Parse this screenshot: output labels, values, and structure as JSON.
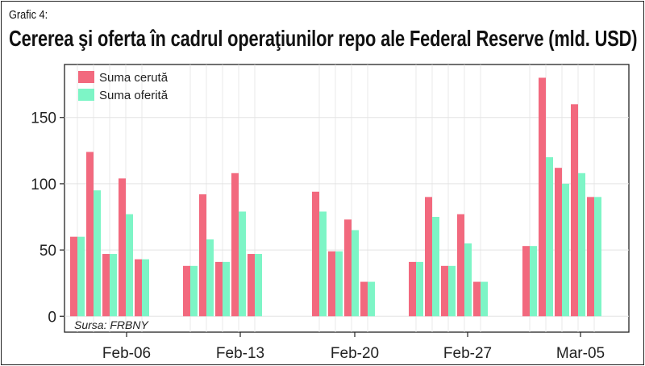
{
  "header": {
    "kicker": "Grafic 4:",
    "title": "Cererea şi oferta în cadrul operaţiunilor repo ale Federal Reserve (mld. USD)"
  },
  "source": "Sursa: FRBNY",
  "colors": {
    "demanded": "#f2697e",
    "offered": "#7df5c6",
    "grid": "#e3e3e3",
    "axis": "#222222"
  },
  "chart_data": {
    "type": "bar",
    "ylim": [
      -12,
      190
    ],
    "yticks": [
      0,
      50,
      100,
      150
    ],
    "grid": true,
    "legend_position": "top-left",
    "xtick_labels": [
      "Feb-06",
      "Feb-13",
      "Feb-20",
      "Feb-27",
      "Mar-05"
    ],
    "series": [
      {
        "name": "Suma cerută",
        "key": "demanded"
      },
      {
        "name": "Suma oferită",
        "key": "offered"
      }
    ],
    "groups": [
      {
        "label": "Feb-06",
        "demanded": [
          60,
          124,
          47,
          104,
          43
        ],
        "offered": [
          60,
          95,
          47,
          77,
          43
        ]
      },
      {
        "label": "Feb-13",
        "demanded": [
          38,
          92,
          41,
          108,
          47
        ],
        "offered": [
          38,
          58,
          41,
          79,
          47
        ]
      },
      {
        "label": "Feb-20",
        "demanded": [
          94,
          49,
          73,
          26
        ],
        "offered": [
          79,
          49,
          65,
          26
        ]
      },
      {
        "label": "Feb-27",
        "demanded": [
          41,
          90,
          38,
          77,
          26
        ],
        "offered": [
          41,
          75,
          38,
          55,
          26
        ]
      },
      {
        "label": "Mar-05",
        "demanded": [
          53,
          180,
          112,
          160,
          90
        ],
        "offered": [
          53,
          120,
          100,
          108,
          90
        ]
      }
    ]
  }
}
